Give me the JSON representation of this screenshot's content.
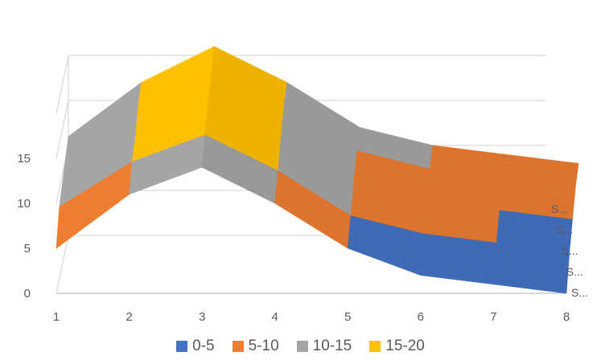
{
  "chart_data": {
    "type": "surface",
    "title": "",
    "categories": [
      "1",
      "2",
      "3",
      "4",
      "5",
      "6",
      "7",
      "8"
    ],
    "z_axis_ticks": [
      "0",
      "5",
      "10",
      "15"
    ],
    "series_labels": [
      "S...",
      "S...",
      "S...",
      "S...",
      "S..."
    ],
    "grid": true,
    "legend_position": "bottom",
    "legend": [
      {
        "label": "0-5",
        "color": "#4472C4"
      },
      {
        "label": "5-10",
        "color": "#ED7D31"
      },
      {
        "label": "10-15",
        "color": "#A5A5A5"
      },
      {
        "label": "15-20",
        "color": "#FFC000"
      }
    ],
    "band_ranges": [
      [
        0,
        5
      ],
      [
        5,
        10
      ],
      [
        10,
        15
      ],
      [
        15,
        20
      ]
    ],
    "series": [
      {
        "values": [
          5,
          11,
          14,
          10,
          5,
          2,
          1,
          0
        ]
      },
      {
        "values": [
          8,
          13,
          16,
          12,
          7,
          5,
          4,
          3
        ]
      },
      {
        "values": [
          9,
          14,
          18,
          14,
          9,
          7,
          6,
          5
        ]
      },
      {
        "values": [
          10,
          16,
          19,
          16,
          11,
          9,
          8,
          7
        ]
      },
      {
        "values": [
          11,
          17,
          21,
          17,
          12,
          10,
          9,
          8
        ]
      }
    ]
  }
}
